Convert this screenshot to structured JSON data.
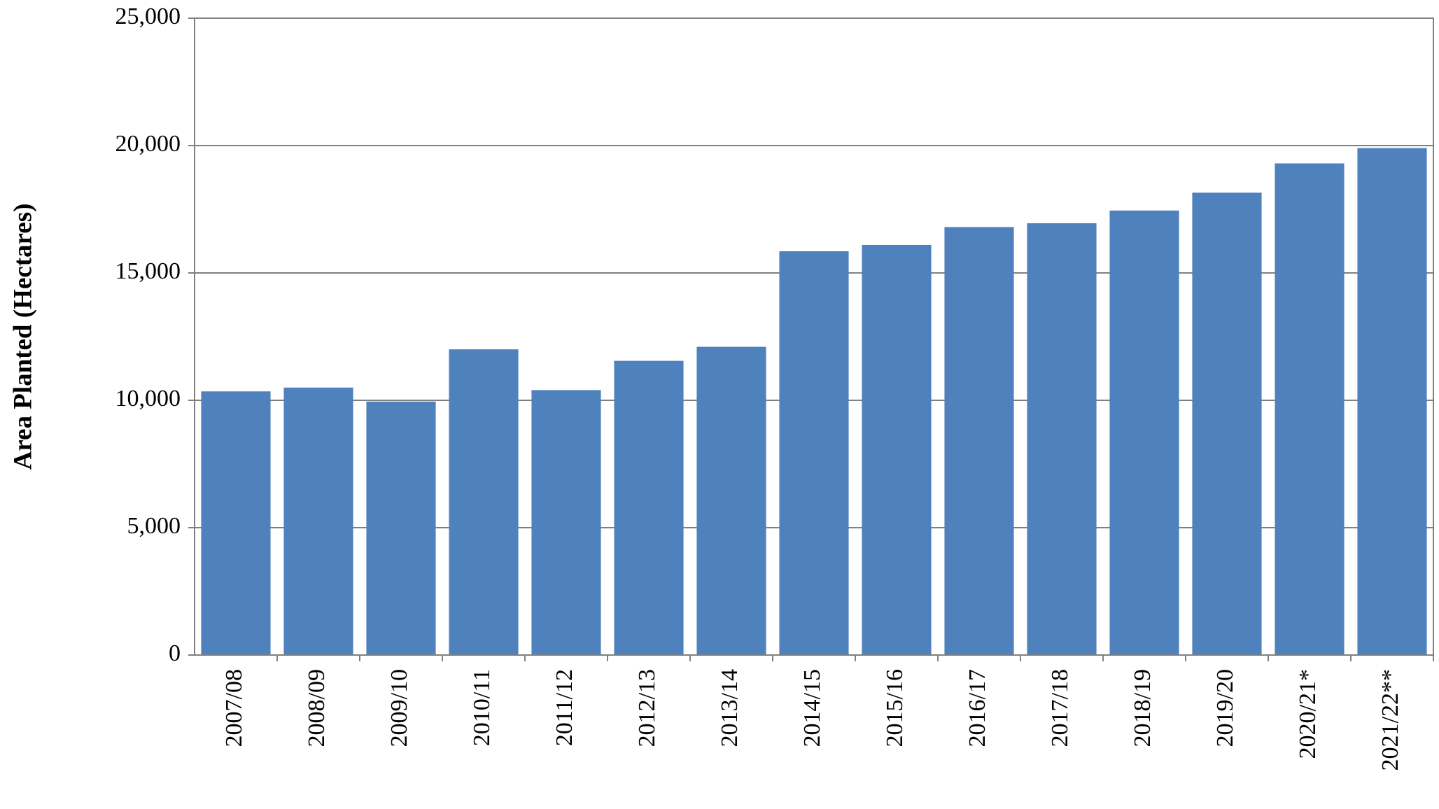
{
  "chart_data": {
    "type": "bar",
    "y_label": "Area Planted (Hectares)",
    "categories": [
      "2007/08",
      "2008/09",
      "2009/10",
      "2010/11",
      "2011/12",
      "2012/13",
      "2013/14",
      "2014/15",
      "2015/16",
      "2016/17",
      "2017/18",
      "2018/19",
      "2019/20",
      "2020/21*",
      "2021/22**"
    ],
    "values": [
      10350,
      10500,
      9950,
      12000,
      10400,
      11550,
      12100,
      15850,
      16100,
      16800,
      16950,
      17450,
      18150,
      19300,
      19900
    ],
    "color": "#4f81bd",
    "ylim": [
      0,
      25000
    ],
    "yticks": [
      0,
      {
        "value": 5000,
        "label": "5,000"
      },
      {
        "value": 10000,
        "label": "10,000"
      },
      {
        "value": 15000,
        "label": "15,000"
      },
      {
        "value": 20000,
        "label": "20,000"
      },
      {
        "value": 25000,
        "label": "25,000"
      }
    ],
    "grid": true
  }
}
